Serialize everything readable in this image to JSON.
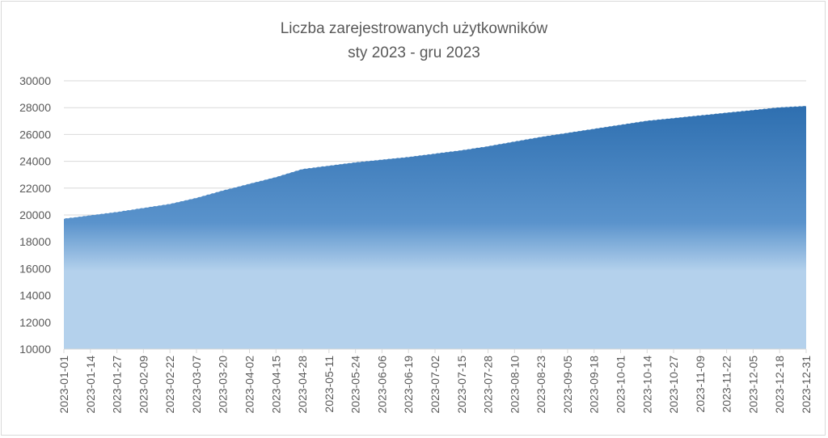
{
  "chart_data": {
    "type": "area",
    "title": "Liczba zarejestrowanych użytkowników",
    "subtitle": "sty 2023 - gru 2023",
    "xlabel": "",
    "ylabel": "",
    "ylim": [
      10000,
      30000
    ],
    "y_ticks": [
      "10000",
      "12000",
      "14000",
      "16000",
      "18000",
      "20000",
      "22000",
      "24000",
      "26000",
      "28000",
      "30000"
    ],
    "x_ticks": [
      "2023-01-01",
      "2023-01-14",
      "2023-01-27",
      "2023-02-09",
      "2023-02-22",
      "2023-03-07",
      "2023-03-20",
      "2023-04-02",
      "2023-04-15",
      "2023-04-28",
      "2023-05-11",
      "2023-05-24",
      "2023-06-06",
      "2023-06-19",
      "2023-07-02",
      "2023-07-15",
      "2023-07-28",
      "2023-08-10",
      "2023-08-23",
      "2023-09-05",
      "2023-09-18",
      "2023-10-01",
      "2023-10-14",
      "2023-10-27",
      "2023-11-09",
      "2023-11-22",
      "2023-12-05",
      "2023-12-18",
      "2023-12-31"
    ],
    "grid": true,
    "legend": "none",
    "colors": {
      "top": "#2e6fb0",
      "middle": "#5a93cc",
      "bottom": "#b4d1ec",
      "grid": "#d9d9d9",
      "text": "#595959"
    },
    "series": [
      {
        "x": [
          "2023-01-01",
          "2023-01-14",
          "2023-01-27",
          "2023-02-09",
          "2023-02-22",
          "2023-03-07",
          "2023-03-20",
          "2023-04-02",
          "2023-04-15",
          "2023-04-28",
          "2023-05-11",
          "2023-05-24",
          "2023-06-06",
          "2023-06-19",
          "2023-07-02",
          "2023-07-15",
          "2023-07-28",
          "2023-08-10",
          "2023-08-23",
          "2023-09-05",
          "2023-09-18",
          "2023-10-01",
          "2023-10-14",
          "2023-10-27",
          "2023-11-09",
          "2023-11-22",
          "2023-12-05",
          "2023-12-18",
          "2023-12-31"
        ],
        "values": [
          19700,
          19950,
          20200,
          20500,
          20800,
          21250,
          21800,
          22300,
          22800,
          23400,
          23650,
          23900,
          24100,
          24300,
          24550,
          24800,
          25100,
          25450,
          25800,
          26100,
          26400,
          26700,
          27000,
          27200,
          27400,
          27600,
          27800,
          28000,
          28100
        ]
      }
    ]
  }
}
